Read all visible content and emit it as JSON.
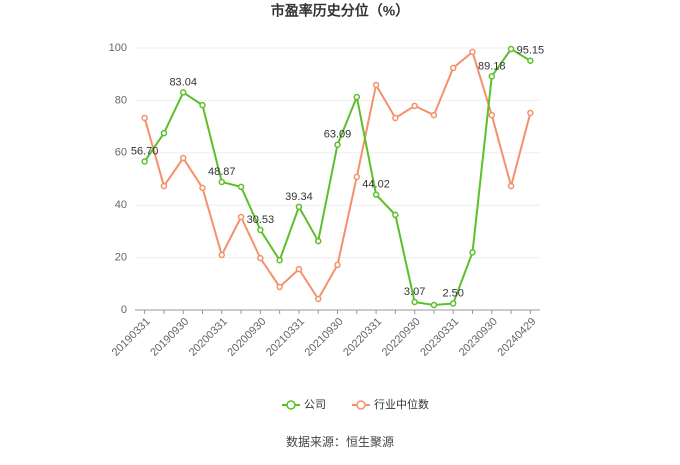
{
  "chart_data": {
    "type": "line",
    "title": "市盈率历史分位（%）",
    "categories": [
      "20190331",
      null,
      "20190930",
      null,
      "20200331",
      null,
      "20200930",
      null,
      "20210331",
      null,
      "20210930",
      null,
      "20220331",
      null,
      "20220930",
      null,
      "20230331",
      null,
      "20230930",
      null,
      "20240429"
    ],
    "series": [
      {
        "name": "公司",
        "color": "#5cbf2a",
        "values": [
          56.7,
          67.5,
          83.04,
          78.2,
          48.87,
          47,
          30.53,
          19,
          39.34,
          26.3,
          63.09,
          81.3,
          44.02,
          36.3,
          3.07,
          1.9,
          2.5,
          22,
          89.18,
          99.6,
          95.15
        ],
        "value_labels": [
          "56.70",
          null,
          "83.04",
          null,
          "48.87",
          null,
          "30.53",
          null,
          "39.34",
          null,
          "63.09",
          null,
          "44.02",
          null,
          "3.07",
          null,
          "2.50",
          null,
          "89.18",
          null,
          "95.15"
        ]
      },
      {
        "name": "行业中位数",
        "color": "#f4906a",
        "values": [
          73.3,
          47.3,
          58,
          46.6,
          21,
          35.5,
          19.8,
          8.8,
          15.6,
          4.2,
          17.2,
          50.8,
          85.9,
          73.3,
          77.9,
          74.4,
          92.4,
          98.5,
          74.4,
          47.3,
          75.2
        ]
      }
    ],
    "ylim": [
      0,
      100
    ],
    "yticks": [
      0,
      20,
      40,
      60,
      80,
      100
    ],
    "grid": true,
    "legend": "bottom",
    "source": "数据来源：恒生聚源"
  }
}
